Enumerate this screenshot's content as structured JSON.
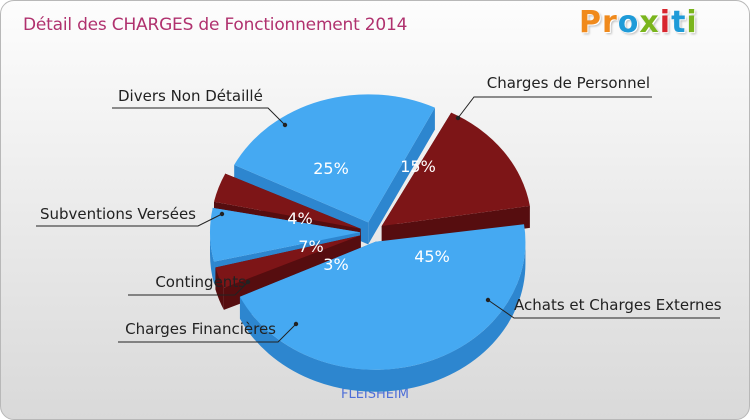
{
  "header": {
    "title": "Détail des CHARGES de Fonctionnement 2014",
    "logo": "Proxiti"
  },
  "footer": {
    "city": "FLEISHEIM"
  },
  "colors": {
    "blue": "#4aa8f0",
    "red": "#7b1416",
    "title": "#b0316e"
  },
  "chart_data": {
    "type": "pie",
    "title": "Détail des CHARGES de Fonctionnement 2014",
    "slices": [
      {
        "label": "Charges de Personnel",
        "value": 15,
        "pct_label": "15%",
        "color": "red"
      },
      {
        "label": "Achats et Charges Externes",
        "value": 45,
        "pct_label": "45%",
        "color": "blue"
      },
      {
        "label": "Charges Financières",
        "value": 3,
        "pct_label": "3%",
        "color": "red"
      },
      {
        "label": "Contingents",
        "value": 7,
        "pct_label": "7%",
        "color": "blue"
      },
      {
        "label": "Subventions Versées",
        "value": 4,
        "pct_label": "4%",
        "color": "red"
      },
      {
        "label": "Divers Non Détaillé",
        "value": 25,
        "pct_label": "25%",
        "color": "blue"
      }
    ]
  }
}
